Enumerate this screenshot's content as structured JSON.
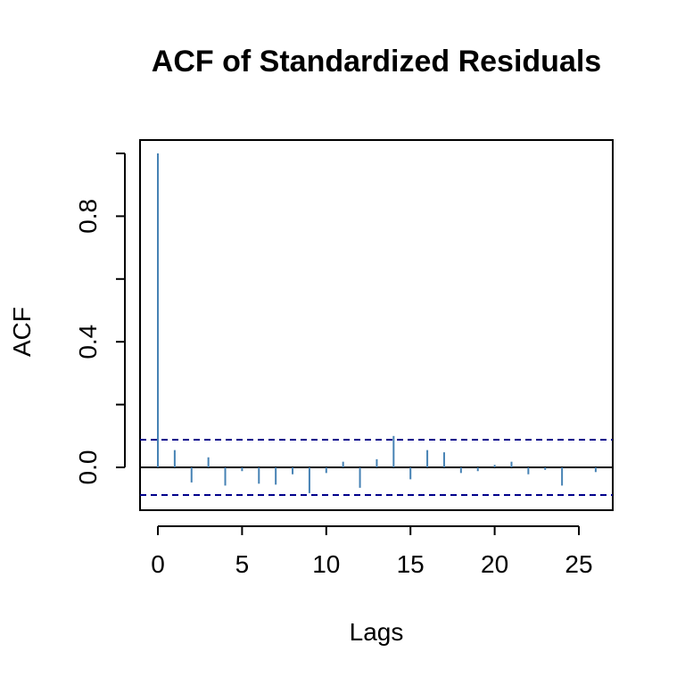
{
  "chart_data": {
    "type": "bar",
    "title": "ACF of Standardized Residuals",
    "xlabel": "Lags",
    "ylabel": "ACF",
    "xlim": [
      -1,
      27
    ],
    "ylim": [
      -0.13,
      1.05
    ],
    "x_ticks": [
      0,
      5,
      10,
      15,
      20,
      25
    ],
    "y_ticks": [
      "0.0",
      "0.4",
      "0.8"
    ],
    "y_tick_values": [
      0.0,
      0.4,
      0.8
    ],
    "y_minor_ticks": [
      0.0,
      0.2,
      0.4,
      0.6,
      0.8,
      1.0
    ],
    "lags": [
      0,
      1,
      2,
      3,
      4,
      5,
      6,
      7,
      8,
      9,
      10,
      11,
      12,
      13,
      14,
      15,
      16,
      17,
      18,
      19,
      20,
      21,
      22,
      23,
      24,
      25,
      26
    ],
    "acf": [
      1.0,
      0.055,
      -0.048,
      0.032,
      -0.058,
      -0.012,
      -0.052,
      -0.055,
      -0.022,
      -0.082,
      -0.018,
      0.018,
      -0.065,
      0.026,
      0.1,
      -0.038,
      0.055,
      0.048,
      -0.018,
      -0.012,
      0.008,
      0.018,
      -0.022,
      -0.008,
      -0.058,
      0.0,
      -0.015
    ],
    "confidence_bound": 0.088,
    "grid": false,
    "colors": {
      "bars": "#4682b4",
      "bounds": "#00008b",
      "zero_line": "#000000",
      "frame": "#000000"
    }
  }
}
